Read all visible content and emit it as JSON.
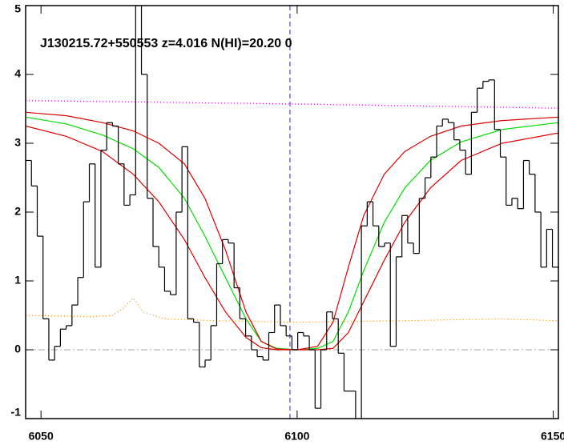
{
  "chart_data": {
    "type": "step",
    "title": "J130215.72+550553 z=4.016 N(HI)=20.20 0",
    "xlim": [
      6047,
      6151
    ],
    "ylim": [
      -1,
      5
    ],
    "xticks": [
      6050,
      6100,
      6150
    ],
    "yticks": [
      -1,
      0,
      1,
      2,
      3,
      4,
      5
    ],
    "hline": 0,
    "hline_color": "#aaaaaa",
    "vline": 6098.6,
    "vline_color": "#2222cc",
    "spectrum": {
      "color": "#000000",
      "x": [
        6047.57,
        6048.7,
        6049.83,
        6050.96,
        6052.09,
        6053.22,
        6054.35,
        6055.48,
        6056.61,
        6057.74,
        6058.87,
        6060.0,
        6061.13,
        6062.26,
        6063.39,
        6064.52,
        6065.65,
        6066.78,
        6067.91,
        6069.04,
        6070.17,
        6071.3,
        6072.43,
        6073.56,
        6074.69,
        6075.82,
        6076.95,
        6078.08,
        6079.21,
        6080.34,
        6081.47,
        6082.6,
        6083.73,
        6084.86,
        6085.99,
        6087.12,
        6088.25,
        6089.38,
        6090.51,
        6091.64,
        6092.77,
        6093.9,
        6095.03,
        6096.16,
        6097.29,
        6098.42,
        6099.55,
        6100.68,
        6101.81,
        6102.94,
        6104.07,
        6105.2,
        6106.33,
        6107.46,
        6108.59,
        6109.72,
        6110.85,
        6111.98,
        6113.11,
        6114.24,
        6115.37,
        6116.5,
        6117.63,
        6118.76,
        6119.89,
        6121.02,
        6122.15,
        6123.28,
        6124.41,
        6125.54,
        6126.67,
        6127.8,
        6128.93,
        6130.06,
        6131.19,
        6132.32,
        6133.45,
        6134.58,
        6135.71,
        6136.84,
        6137.97,
        6139.1,
        6140.23,
        6141.36,
        6142.49,
        6143.62,
        6144.75,
        6145.88,
        6147.01,
        6148.14,
        6149.27,
        6150.4
      ],
      "values": [
        2.75,
        2.38,
        1.65,
        0.45,
        -0.15,
        0.05,
        0.3,
        0.35,
        0.65,
        1.05,
        2.15,
        2.7,
        1.2,
        2.9,
        3.3,
        3.25,
        2.7,
        2.1,
        2.25,
        5.0,
        4.0,
        2.2,
        1.5,
        1.2,
        0.85,
        0.8,
        2.0,
        2.95,
        0.45,
        0.4,
        -0.25,
        -0.15,
        0.35,
        1.25,
        1.6,
        1.55,
        0.9,
        0.45,
        0.2,
        0.0,
        -0.1,
        -0.15,
        0.25,
        0.65,
        0.35,
        0.2,
        0.0,
        0.25,
        0.2,
        0.0,
        -0.85,
        0.0,
        0.55,
        0.45,
        -0.05,
        -0.6,
        -0.6,
        -1.1,
        1.8,
        2.15,
        1.8,
        1.5,
        1.55,
        0.05,
        1.35,
        1.95,
        1.55,
        1.4,
        2.2,
        2.5,
        2.8,
        3.25,
        3.35,
        3.3,
        3.05,
        2.9,
        2.55,
        3.45,
        3.8,
        3.9,
        3.92,
        3.2,
        2.8,
        2.1,
        2.2,
        2.05,
        2.75,
        2.55,
        2.0,
        1.2,
        1.75,
        1.2
      ]
    },
    "lines": [
      {
        "color": "#00dd00",
        "dash": "none",
        "x": [
          6047,
          6055,
          6062,
          6068,
          6073,
          6078,
          6082,
          6086,
          6090,
          6093,
          6096,
          6100,
          6104,
          6107,
          6110,
          6113,
          6117,
          6121,
          6126,
          6132,
          6140,
          6151
        ],
        "values": [
          3.38,
          3.28,
          3.12,
          2.92,
          2.65,
          2.2,
          1.65,
          1.05,
          0.45,
          0.12,
          0.02,
          0.0,
          0.02,
          0.12,
          0.55,
          1.15,
          1.85,
          2.35,
          2.75,
          3.02,
          3.2,
          3.3
        ]
      },
      {
        "color": "#dd0000",
        "dash": "none",
        "x": [
          6047,
          6055,
          6062,
          6068,
          6073,
          6078,
          6082,
          6086,
          6090,
          6093,
          6096,
          6100,
          6104,
          6107,
          6110,
          6113,
          6117,
          6121,
          6126,
          6132,
          6140,
          6151
        ],
        "values": [
          3.45,
          3.4,
          3.3,
          3.18,
          3.0,
          2.7,
          2.2,
          1.45,
          0.55,
          0.12,
          0.01,
          0.0,
          0.05,
          0.4,
          1.2,
          1.95,
          2.55,
          2.88,
          3.1,
          3.25,
          3.33,
          3.38
        ]
      },
      {
        "color": "#dd0000",
        "dash": "none",
        "x": [
          6047,
          6055,
          6062,
          6068,
          6073,
          6078,
          6082,
          6086,
          6090,
          6093,
          6096,
          6100,
          6104,
          6107,
          6110,
          6113,
          6117,
          6121,
          6126,
          6132,
          6140,
          6151
        ],
        "values": [
          3.25,
          3.1,
          2.88,
          2.55,
          2.15,
          1.6,
          1.05,
          0.55,
          0.18,
          0.03,
          0.0,
          0.0,
          0.0,
          0.02,
          0.25,
          0.7,
          1.3,
          1.85,
          2.35,
          2.75,
          3.0,
          3.15
        ]
      },
      {
        "color": "#dd00dd",
        "dash": "1,3",
        "x": [
          6047,
          6100,
          6151
        ],
        "values": [
          3.62,
          3.57,
          3.51
        ]
      },
      {
        "color": "#ee8800",
        "dash": "1,3",
        "x": [
          6047,
          6060,
          6064,
          6066,
          6068,
          6070,
          6074,
          6085,
          6100,
          6120,
          6140,
          6151
        ],
        "values": [
          0.5,
          0.48,
          0.5,
          0.6,
          0.75,
          0.55,
          0.45,
          0.42,
          0.4,
          0.42,
          0.45,
          0.42
        ]
      }
    ]
  }
}
